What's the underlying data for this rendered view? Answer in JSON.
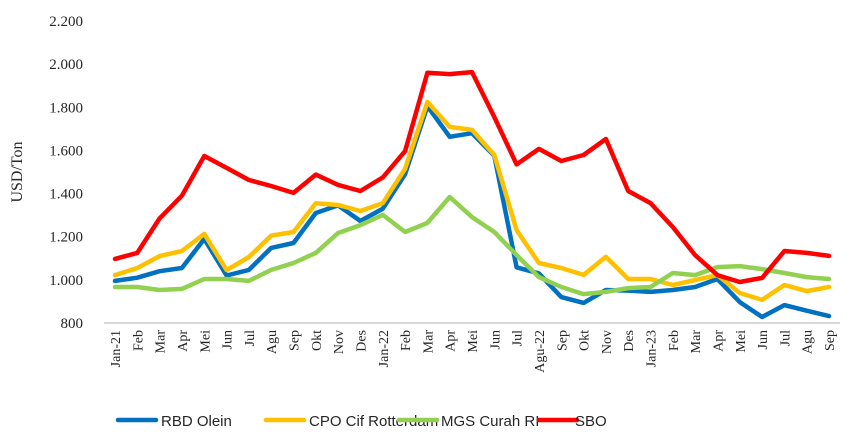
{
  "chart_data": {
    "type": "line",
    "title": "",
    "xlabel": "",
    "ylabel": "USD/Ton",
    "ylim": [
      800,
      2200
    ],
    "yticks": [
      "800",
      "1.000",
      "1.200",
      "1.400",
      "1.600",
      "1.800",
      "2.000",
      "2.200"
    ],
    "ytick_values": [
      800,
      1000,
      1200,
      1400,
      1600,
      1800,
      2000,
      2200
    ],
    "grid": false,
    "legend_position": "bottom",
    "categories": [
      "Jan-21",
      "Feb",
      "Mar",
      "Apr",
      "Mei",
      "Jun",
      "Jul",
      "Agu",
      "Sep",
      "Okt",
      "Nov",
      "Des",
      "Jan-22",
      "Feb",
      "Mar",
      "Apr",
      "Mei",
      "Jun",
      "Jul",
      "Agu-22",
      "Sep",
      "Okt",
      "Nov",
      "Des",
      "Jan-23",
      "Feb",
      "Mar",
      "Apr",
      "Mei",
      "Jun",
      "Jul",
      "Agu",
      "Sep"
    ],
    "series": [
      {
        "name": "RBD Olein",
        "color": "#0070c0",
        "values": [
          995,
          1010,
          1040,
          1055,
          1190,
          1020,
          1046,
          1148,
          1171,
          1310,
          1345,
          1273,
          1330,
          1490,
          1805,
          1663,
          1680,
          1575,
          1058,
          1030,
          920,
          893,
          953,
          950,
          944,
          953,
          967,
          1004,
          897,
          828,
          883,
          857,
          832
        ]
      },
      {
        "name": "CPO Cif Rotterdam",
        "color": "#ffc000",
        "values": [
          1022,
          1055,
          1110,
          1134,
          1213,
          1045,
          1106,
          1205,
          1222,
          1355,
          1347,
          1319,
          1356,
          1515,
          1825,
          1709,
          1695,
          1579,
          1230,
          1078,
          1055,
          1023,
          1107,
          1004,
          1004,
          976,
          999,
          1022,
          939,
          907,
          976,
          948,
          967
        ]
      },
      {
        "name": "MGS Curah RI",
        "color": "#92d050",
        "values": [
          967,
          967,
          953,
          958,
          1004,
          1004,
          995,
          1046,
          1078,
          1125,
          1217,
          1254,
          1301,
          1222,
          1264,
          1384,
          1291,
          1222,
          1115,
          1013,
          967,
          934,
          944,
          962,
          967,
          1032,
          1022,
          1059,
          1064,
          1050,
          1032,
          1013,
          1004
        ]
      },
      {
        "name": "SBO",
        "color": "#ff0000",
        "values": [
          1097,
          1125,
          1285,
          1390,
          1574,
          1519,
          1463,
          1435,
          1403,
          1488,
          1440,
          1412,
          1475,
          1597,
          1960,
          1954,
          1963,
          1755,
          1535,
          1607,
          1551,
          1579,
          1653,
          1412,
          1356,
          1245,
          1115,
          1022,
          990,
          1009,
          1134,
          1125,
          1111
        ]
      }
    ]
  }
}
